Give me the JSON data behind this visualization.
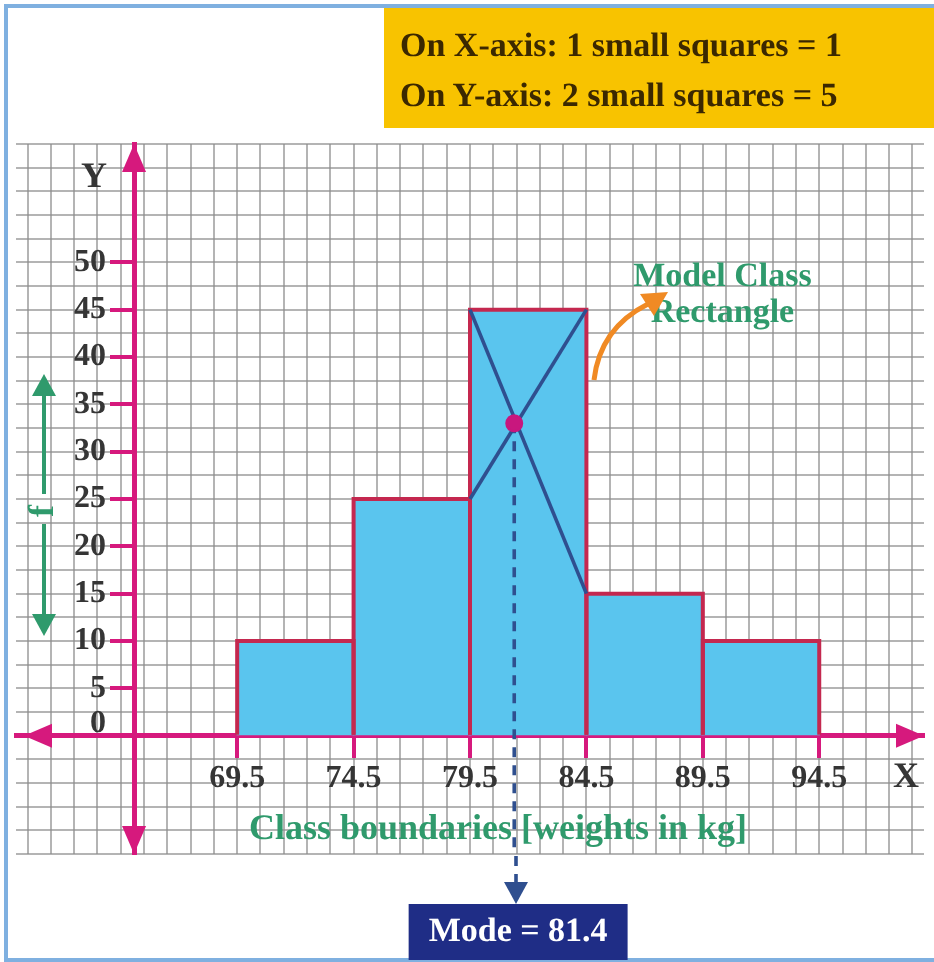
{
  "chart_data": {
    "type": "histogram",
    "annotations": [
      "On X-axis: 1 small squares = 1",
      "On Y-axis: 2 small squares = 5",
      "Y",
      {
        "text": "Model Class Rectangle",
        "x": 84.5,
        "y": 45
      },
      "X",
      "Mode = 81.4"
    ],
    "xlabel": "Class boundaries [weights in kg]",
    "ylabel": "f",
    "bins": [
      69.5,
      74.5,
      79.5,
      84.5,
      89.5,
      94.5
    ],
    "series": [
      {
        "values": [
          10,
          25,
          45,
          15,
          10
        ],
        "color": "#5ac5ee"
      },
      {
        "type": "line",
        "x": [
          79.5,
          84.5
        ],
        "values": [
          45,
          15
        ],
        "color": "#2f4f8f"
      },
      {
        "type": "line",
        "x": [
          79.5,
          84.5
        ],
        "values": [
          25,
          45
        ],
        "color": "#2f4f8f"
      },
      {
        "type": "line",
        "x": [
          81.4,
          81.4
        ],
        "values": [
          33,
          -12.5
        ],
        "color": "#2f4f8f",
        "line_style": "dashed"
      },
      {
        "type": "scatter",
        "x": [
          81.4
        ],
        "values": [
          33
        ],
        "color": "#c8177e",
        "marker": "circle"
      }
    ],
    "xlim": [
      60,
      99
    ],
    "xticks": [
      {
        "value": 60.5,
        "label": null
      },
      {
        "value": 61.5,
        "label": null
      },
      {
        "value": 62.5,
        "label": null
      },
      {
        "value": 63.5,
        "label": null
      },
      {
        "value": 64.5,
        "label": null
      },
      {
        "value": 65.5,
        "label": null
      },
      {
        "value": 66.5,
        "label": null
      },
      {
        "value": 67.5,
        "label": null
      },
      {
        "value": 68.5,
        "label": null
      },
      69.5,
      {
        "value": 70.5,
        "label": null
      },
      {
        "value": 71.5,
        "label": null
      },
      {
        "value": 72.5,
        "label": null
      },
      {
        "value": 73.5,
        "label": null
      },
      74.5,
      {
        "value": 75.5,
        "label": null
      },
      {
        "value": 76.5,
        "label": null
      },
      {
        "value": 77.5,
        "label": null
      },
      {
        "value": 78.5,
        "label": null
      },
      79.5,
      {
        "value": 80.5,
        "label": null
      },
      {
        "value": 81.5,
        "label": null
      },
      {
        "value": 82.5,
        "label": null
      },
      {
        "value": 83.5,
        "label": null
      },
      84.5,
      {
        "value": 85.5,
        "label": null
      },
      {
        "value": 86.5,
        "label": null
      },
      {
        "value": 87.5,
        "label": null
      },
      {
        "value": 88.5,
        "label": null
      },
      89.5,
      {
        "value": 90.5,
        "label": null
      },
      {
        "value": 91.5,
        "label": null
      },
      {
        "value": 92.5,
        "label": null
      },
      {
        "value": 93.5,
        "label": null
      },
      94.5,
      {
        "value": 95.5,
        "label": null
      },
      {
        "value": 96.5,
        "label": null
      },
      {
        "value": 97.5,
        "label": null
      },
      {
        "value": 98.5,
        "label": null
      }
    ],
    "ylim": [
      -12.5,
      62.5
    ],
    "yticks": [
      {
        "value": -12.5,
        "label": null
      },
      {
        "value": -10,
        "label": null
      },
      {
        "value": -7.5,
        "label": null
      },
      {
        "value": -5,
        "label": null
      },
      {
        "value": -2.5,
        "label": null
      },
      0,
      {
        "value": 2.5,
        "label": null
      },
      5,
      {
        "value": 7.5,
        "label": null
      },
      10,
      {
        "value": 12.5,
        "label": null
      },
      15,
      {
        "value": 17.5,
        "label": null
      },
      20,
      {
        "value": 22.5,
        "label": null
      },
      25,
      {
        "value": 27.5,
        "label": null
      },
      30,
      {
        "value": 32.5,
        "label": null
      },
      35,
      {
        "value": 37.5,
        "label": null
      },
      40,
      {
        "value": 42.5,
        "label": null
      },
      45,
      {
        "value": 47.5,
        "label": null
      },
      50,
      {
        "value": 52.5,
        "label": null
      },
      {
        "value": 55,
        "label": null
      },
      {
        "value": 57.5,
        "label": null
      },
      {
        "value": 60,
        "label": null
      },
      {
        "value": 62.5,
        "label": null
      }
    ],
    "grid": true
  }
}
